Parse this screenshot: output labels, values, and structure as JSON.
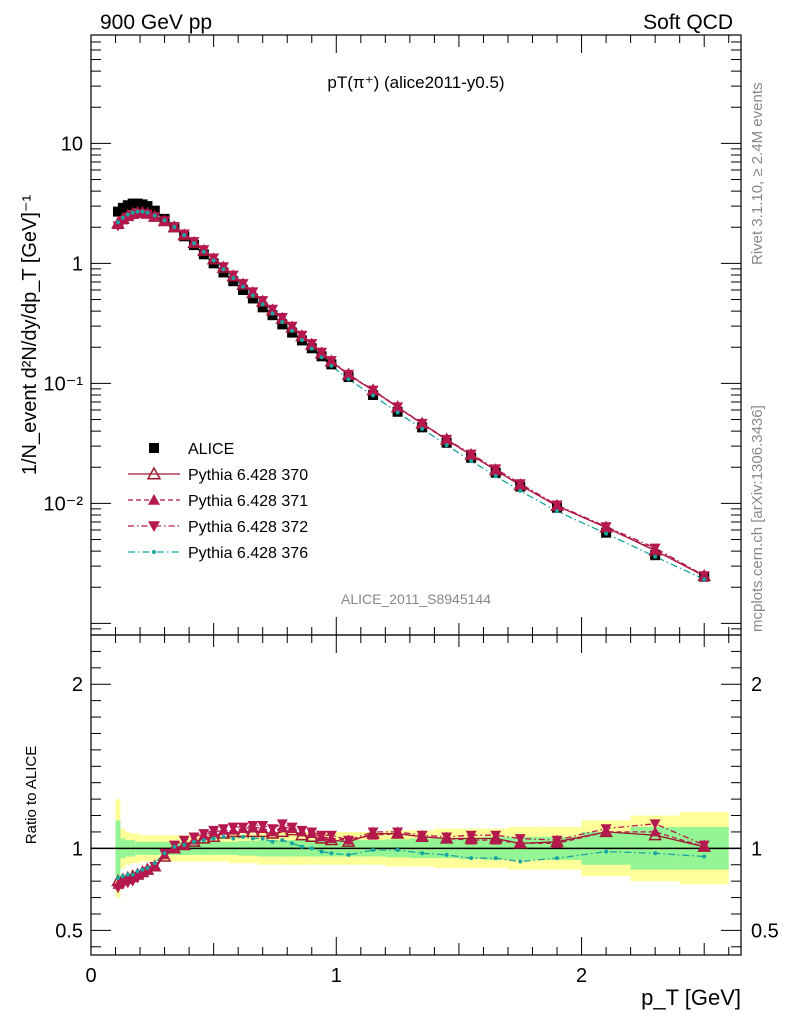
{
  "header": {
    "left": "900 GeV pp",
    "right": "Soft QCD"
  },
  "side": {
    "top": "Rivet 3.1.10, ≥ 2.4M events",
    "bottom": "mcplots.cern.ch [arXiv:1306.3436]"
  },
  "colors": {
    "alice": "#000000",
    "p370": "#9c1830",
    "p371": "#b5174f",
    "p372": "#b5174f",
    "p376": "#1aa4a0",
    "band_inner": "#93f593",
    "band_outer": "#ffff99"
  },
  "chart_data": [
    {
      "type": "scatter",
      "title": "pT(π⁺) (alice2011-y0.5)",
      "watermark": "ALICE_2011_S8945144",
      "ylabel": "1/N_event d²N/dy/dp_T [GeV]⁻¹",
      "yscale": "log",
      "ylim": [
        0.0008,
        80
      ],
      "xlim": [
        0,
        2.65
      ],
      "y_tick_labels": [
        "10⁻²",
        "10⁻¹",
        "1",
        "10"
      ],
      "legend": {
        "position": "bottom-left",
        "entries": [
          "ALICE",
          "Pythia 6.428 370",
          "Pythia 6.428 371",
          "Pythia 6.428 372",
          "Pythia 6.428 376"
        ]
      },
      "x": [
        0.11,
        0.13,
        0.15,
        0.17,
        0.19,
        0.21,
        0.23,
        0.26,
        0.3,
        0.34,
        0.38,
        0.42,
        0.46,
        0.5,
        0.54,
        0.58,
        0.62,
        0.66,
        0.7,
        0.74,
        0.78,
        0.82,
        0.86,
        0.9,
        0.94,
        0.98,
        1.05,
        1.15,
        1.25,
        1.35,
        1.45,
        1.55,
        1.65,
        1.75,
        1.9,
        2.1,
        2.3,
        2.5
      ],
      "series": [
        {
          "name": "ALICE",
          "values": [
            2.7,
            2.9,
            3.05,
            3.15,
            3.15,
            3.1,
            3.0,
            2.75,
            2.35,
            2.0,
            1.68,
            1.42,
            1.19,
            1.0,
            0.84,
            0.71,
            0.6,
            0.51,
            0.43,
            0.37,
            0.31,
            0.265,
            0.228,
            0.196,
            0.168,
            0.144,
            0.113,
            0.08,
            0.058,
            0.043,
            0.032,
            0.024,
            0.018,
            0.0138,
            0.0092,
            0.0057,
            0.0037,
            0.00245
          ]
        },
        {
          "name": "Pythia 6.428 370",
          "values": [
            2.15,
            2.35,
            2.5,
            2.6,
            2.65,
            2.65,
            2.6,
            2.45,
            2.25,
            2.0,
            1.72,
            1.48,
            1.27,
            1.08,
            0.92,
            0.78,
            0.665,
            0.565,
            0.48,
            0.405,
            0.345,
            0.292,
            0.247,
            0.21,
            0.178,
            0.152,
            0.118,
            0.0875,
            0.0633,
            0.0462,
            0.034,
            0.0253,
            0.0189,
            0.0142,
            0.00953,
            0.00629,
            0.00404,
            0.00248
          ]
        },
        {
          "name": "Pythia 6.428 371",
          "values": [
            2.1,
            2.3,
            2.45,
            2.55,
            2.62,
            2.62,
            2.58,
            2.45,
            2.25,
            2.01,
            1.74,
            1.5,
            1.29,
            1.1,
            0.935,
            0.79,
            0.675,
            0.575,
            0.485,
            0.41,
            0.35,
            0.297,
            0.25,
            0.213,
            0.18,
            0.153,
            0.118,
            0.087,
            0.063,
            0.046,
            0.0338,
            0.0252,
            0.019,
            0.0142,
            0.0095,
            0.0063,
            0.0041,
            0.00248
          ]
        },
        {
          "name": "Pythia 6.428 372",
          "values": [
            2.05,
            2.28,
            2.42,
            2.52,
            2.6,
            2.6,
            2.57,
            2.45,
            2.27,
            2.03,
            1.76,
            1.52,
            1.3,
            1.11,
            0.94,
            0.8,
            0.68,
            0.58,
            0.49,
            0.415,
            0.355,
            0.3,
            0.252,
            0.215,
            0.182,
            0.155,
            0.119,
            0.088,
            0.0638,
            0.0465,
            0.0342,
            0.0258,
            0.0194,
            0.0146,
            0.0097,
            0.0064,
            0.00425,
            0.0025
          ]
        },
        {
          "name": "Pythia 6.428 376",
          "values": [
            2.2,
            2.4,
            2.55,
            2.65,
            2.7,
            2.7,
            2.65,
            2.5,
            2.28,
            2.01,
            1.72,
            1.47,
            1.25,
            1.06,
            0.895,
            0.755,
            0.64,
            0.54,
            0.455,
            0.383,
            0.325,
            0.274,
            0.23,
            0.195,
            0.165,
            0.14,
            0.108,
            0.0792,
            0.0572,
            0.0418,
            0.0306,
            0.0225,
            0.0169,
            0.0127,
            0.0086,
            0.0056,
            0.0036,
            0.00233
          ]
        }
      ]
    },
    {
      "type": "line",
      "ylabel": "Ratio to ALICE",
      "xlabel": "p_T [GeV]",
      "xlim": [
        0,
        2.65
      ],
      "ylim": [
        0.35,
        2.3
      ],
      "y_tick_labels": [
        "0.5",
        "1",
        "2"
      ],
      "x_tick_labels": [
        "0",
        "1",
        "2"
      ],
      "x": [
        0.11,
        0.13,
        0.15,
        0.17,
        0.19,
        0.21,
        0.23,
        0.26,
        0.3,
        0.34,
        0.38,
        0.42,
        0.46,
        0.5,
        0.54,
        0.58,
        0.62,
        0.66,
        0.7,
        0.74,
        0.78,
        0.82,
        0.86,
        0.9,
        0.94,
        0.98,
        1.05,
        1.15,
        1.25,
        1.35,
        1.45,
        1.55,
        1.65,
        1.75,
        1.9,
        2.1,
        2.3,
        2.5
      ],
      "band_inner": [
        0.17,
        0.06,
        0.05,
        0.05,
        0.04,
        0.04,
        0.04,
        0.04,
        0.04,
        0.04,
        0.04,
        0.04,
        0.04,
        0.04,
        0.04,
        0.04,
        0.045,
        0.045,
        0.05,
        0.05,
        0.05,
        0.05,
        0.05,
        0.05,
        0.05,
        0.05,
        0.05,
        0.05,
        0.055,
        0.06,
        0.06,
        0.065,
        0.07,
        0.07,
        0.07,
        0.1,
        0.13,
        0.13
      ],
      "band_outer": [
        0.3,
        0.12,
        0.1,
        0.09,
        0.09,
        0.08,
        0.08,
        0.08,
        0.08,
        0.08,
        0.08,
        0.08,
        0.08,
        0.08,
        0.08,
        0.09,
        0.09,
        0.09,
        0.1,
        0.1,
        0.1,
        0.1,
        0.1,
        0.1,
        0.1,
        0.1,
        0.1,
        0.1,
        0.11,
        0.11,
        0.12,
        0.12,
        0.12,
        0.13,
        0.13,
        0.17,
        0.2,
        0.22
      ],
      "series": [
        {
          "name": "Pythia 6.428 370",
          "values": [
            0.8,
            0.81,
            0.82,
            0.83,
            0.84,
            0.855,
            0.87,
            0.89,
            0.95,
            1.0,
            1.02,
            1.04,
            1.06,
            1.07,
            1.09,
            1.1,
            1.1,
            1.1,
            1.1,
            1.09,
            1.1,
            1.11,
            1.08,
            1.07,
            1.06,
            1.05,
            1.04,
            1.09,
            1.09,
            1.07,
            1.06,
            1.06,
            1.06,
            1.03,
            1.04,
            1.1,
            1.08,
            1.01
          ]
        },
        {
          "name": "Pythia 6.428 371",
          "values": [
            0.78,
            0.8,
            0.81,
            0.82,
            0.84,
            0.86,
            0.87,
            0.89,
            0.96,
            1.0,
            1.02,
            1.05,
            1.08,
            1.1,
            1.11,
            1.11,
            1.12,
            1.13,
            1.12,
            1.1,
            1.13,
            1.12,
            1.1,
            1.09,
            1.07,
            1.06,
            1.05,
            1.08,
            1.09,
            1.07,
            1.06,
            1.05,
            1.05,
            1.03,
            1.03,
            1.1,
            1.1,
            1.01
          ]
        },
        {
          "name": "Pythia 6.428 372",
          "values": [
            0.76,
            0.78,
            0.79,
            0.8,
            0.82,
            0.84,
            0.86,
            0.89,
            0.97,
            1.02,
            1.05,
            1.07,
            1.09,
            1.11,
            1.12,
            1.13,
            1.13,
            1.14,
            1.14,
            1.12,
            1.15,
            1.13,
            1.11,
            1.1,
            1.08,
            1.08,
            1.05,
            1.1,
            1.1,
            1.08,
            1.07,
            1.08,
            1.08,
            1.06,
            1.05,
            1.12,
            1.15,
            1.02
          ]
        },
        {
          "name": "Pythia 6.428 376",
          "values": [
            0.82,
            0.83,
            0.84,
            0.84,
            0.86,
            0.87,
            0.88,
            0.91,
            0.97,
            1.01,
            1.02,
            1.04,
            1.05,
            1.06,
            1.07,
            1.06,
            1.07,
            1.06,
            1.06,
            1.04,
            1.05,
            1.03,
            1.01,
            1.0,
            0.98,
            0.97,
            0.96,
            0.99,
            0.99,
            0.97,
            0.96,
            0.94,
            0.94,
            0.92,
            0.94,
            0.98,
            0.97,
            0.95
          ]
        }
      ]
    }
  ]
}
